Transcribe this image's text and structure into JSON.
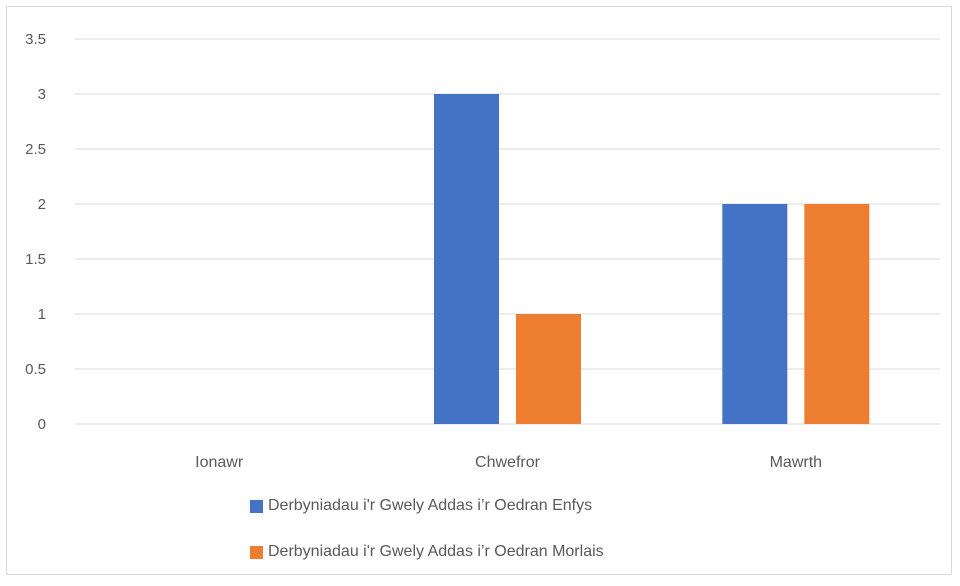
{
  "chart_data": {
    "type": "bar",
    "categories": [
      "Ionawr",
      "Chwefror",
      "Mawrth"
    ],
    "series": [
      {
        "name": "Derbyniadau i'r Gwely Addas i’r Oedran Enfys",
        "values": [
          0,
          3,
          2
        ],
        "color": "#4472c4"
      },
      {
        "name": "Derbyniadau i'r Gwely Addas i’r Oedran Morlais",
        "values": [
          0,
          1,
          2
        ],
        "color": "#ed7d31"
      }
    ],
    "ylim": [
      0,
      3.5
    ],
    "yticks": [
      "0",
      "0.5",
      "1",
      "1.5",
      "2",
      "2.5",
      "3",
      "3.5"
    ],
    "grid": true,
    "legend": "bottom"
  }
}
